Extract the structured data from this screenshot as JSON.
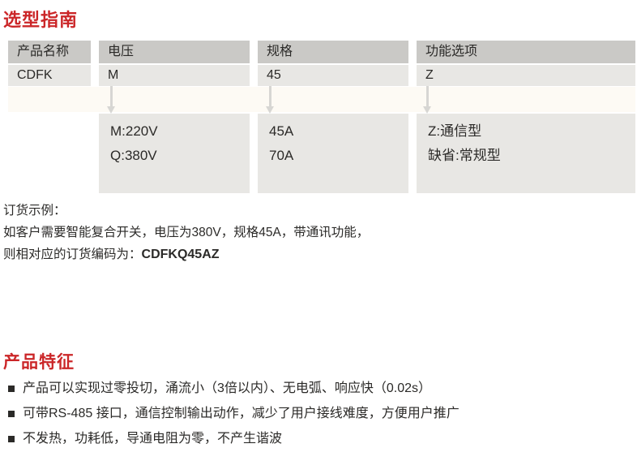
{
  "page": {
    "background": "#ffffff",
    "accent_red": "#cb2628",
    "text_color": "#2b2a28",
    "header_gray": "#cac9c6",
    "cell_gray": "#e8e7e4",
    "cream_band": "#fdfaf4",
    "arrow_gray": "#d7d6d3"
  },
  "selection_guide": {
    "title": "选型指南",
    "columns": [
      {
        "header": "产品名称",
        "code": "CDFK",
        "options": []
      },
      {
        "header": "电压",
        "code": "M",
        "options": [
          "M:220V",
          "Q:380V"
        ]
      },
      {
        "header": "规格",
        "code": "45",
        "options": [
          "45A",
          "70A"
        ]
      },
      {
        "header": "功能选项",
        "code": "Z",
        "options": [
          "Z:通信型",
          "缺省:常规型"
        ]
      }
    ],
    "order_example": {
      "label": "订货示例：",
      "description": "如客户需要智能复合开关，电压为380V，规格45A，带通讯功能，",
      "code_prefix": "则相对应的订货编码为：",
      "order_code": "CDFKQ45AZ"
    }
  },
  "features": {
    "title": "产品特征",
    "items": [
      "产品可以实现过零投切，涌流小（3倍以内）、无电弧、响应快（0.02s）",
      "可带RS-485 接口，通信控制输出动作，减少了用户接线难度，方便用户推广",
      "不发热，功耗低，导通电阻为零，不产生谐波"
    ]
  }
}
